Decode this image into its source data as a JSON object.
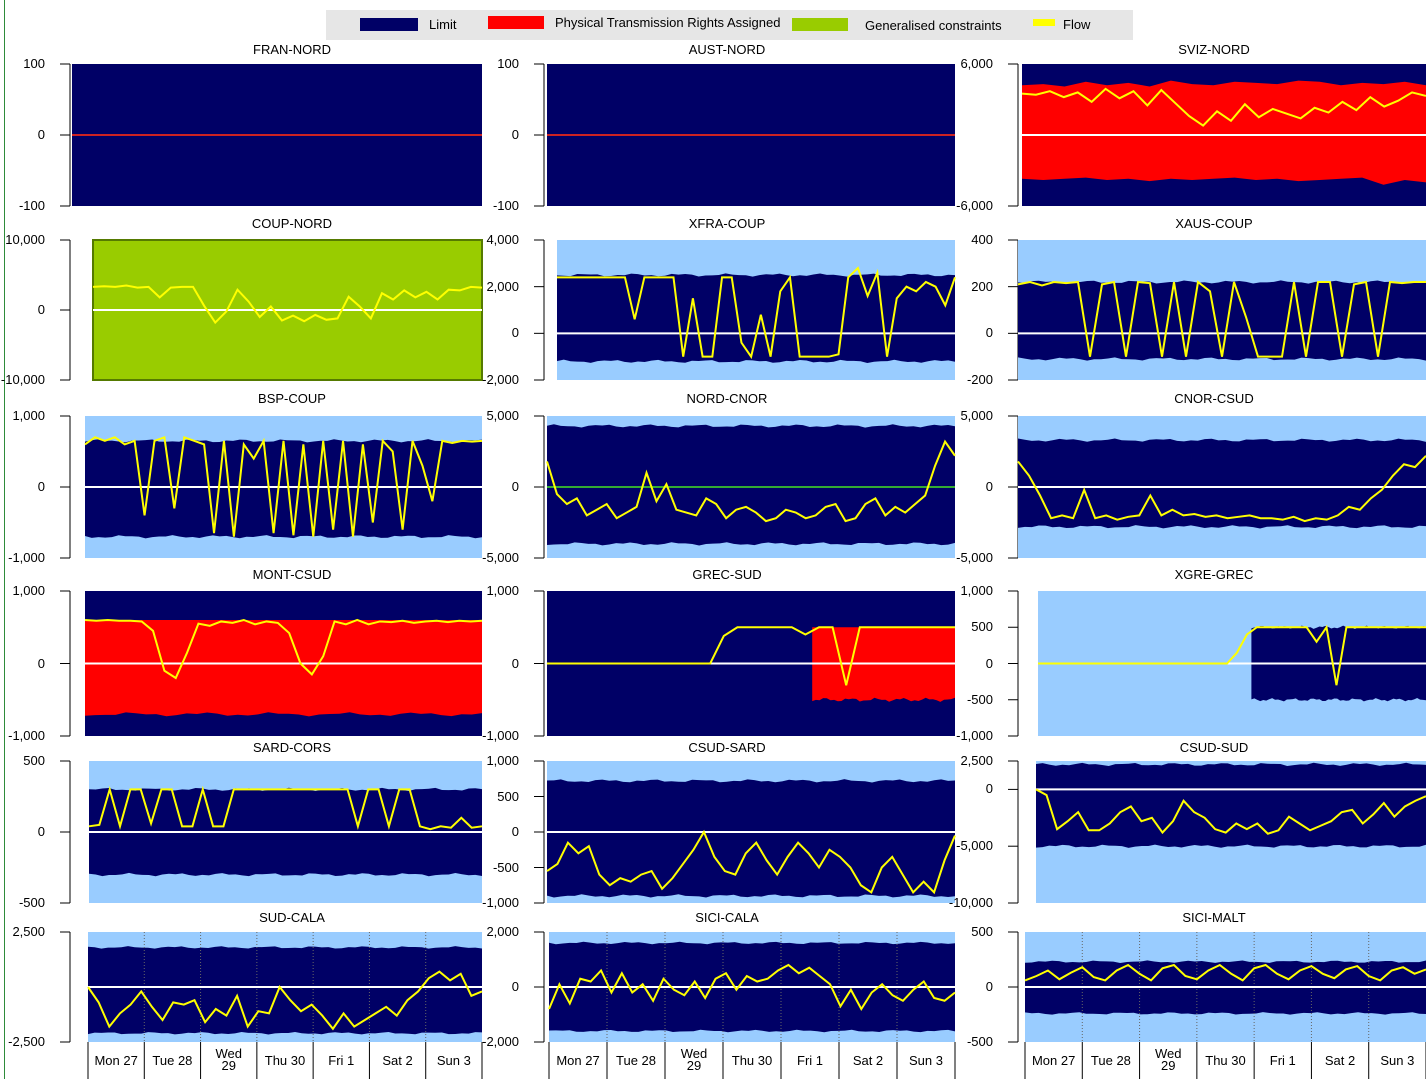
{
  "colors": {
    "limit": "#000066",
    "ptr": "#ff0000",
    "generalised": "#99cc00",
    "flow": "#ffff00",
    "outer": "#99ccff",
    "zero_line": "#ffffff"
  },
  "legend": [
    {
      "label": "Limit",
      "color": "#000066"
    },
    {
      "label": "Physical Transmission Rights Assigned",
      "color": "#ff0000"
    },
    {
      "label": "Generalised constraints",
      "color": "#99cc00"
    },
    {
      "label": "Flow",
      "color": "#ffff00"
    }
  ],
  "x_categories": [
    "Mon 27",
    "Tue 28",
    "Wed 29",
    "Thu 30",
    "Fri 1",
    "Sat 2",
    "Sun 3"
  ],
  "x_labels_display": [
    [
      "Mon 27"
    ],
    [
      "Tue 28"
    ],
    [
      "Wed",
      "29"
    ],
    [
      "Thu 30"
    ],
    [
      "Fri 1"
    ],
    [
      "Sat 2"
    ],
    [
      "Sun 3"
    ]
  ],
  "chart_data": [
    {
      "type": "area",
      "title": "FRAN-NORD",
      "yticks": [
        "100",
        "0",
        "-100"
      ],
      "ylim": [
        -100,
        100
      ],
      "fill": "limit",
      "limit": [
        [
          -100,
          100
        ]
      ],
      "ptr": null,
      "flow": [
        0,
        0
      ],
      "flow_color": "#cc2222"
    },
    {
      "type": "area",
      "title": "AUST-NORD",
      "yticks": [
        "100",
        "0",
        "-100"
      ],
      "ylim": [
        -100,
        100
      ],
      "fill": "limit",
      "limit": [
        [
          -100,
          100
        ]
      ],
      "ptr": null,
      "flow": [
        0,
        0
      ],
      "flow_color": "#cc2222"
    },
    {
      "type": "area",
      "title": "SVIZ-NORD",
      "yticks": [
        "6,000",
        "-6,000"
      ],
      "ylim": [
        -6000,
        6000
      ],
      "fill": "limit",
      "ptr_hi": [
        4200,
        4300,
        4100,
        4500,
        4200,
        4400,
        4100,
        4600,
        4300,
        4200,
        4500,
        4400,
        4300,
        4600,
        4500,
        4200,
        4400,
        4300,
        4500,
        4200
      ],
      "ptr_lo": [
        -3700,
        -3800,
        -3700,
        -3600,
        -3800,
        -3700,
        -3900,
        -3700,
        -3800,
        -3700,
        -3600,
        -3800,
        -3700,
        -3900,
        -3800,
        -3700,
        -3600,
        -4200,
        -3800,
        -4000
      ],
      "flow": [
        3500,
        3400,
        3700,
        3200,
        3600,
        2800,
        3900,
        3100,
        3700,
        2500,
        3800,
        2700,
        1600,
        800,
        2000,
        1200,
        2600,
        1500,
        2200,
        1800,
        1400,
        2300,
        1900,
        2800,
        2100,
        3200,
        2400,
        2900,
        3600,
        3300
      ]
    },
    {
      "type": "area",
      "title": "COUP-NORD",
      "yticks": [
        "10,000",
        "0",
        "-10,000"
      ],
      "ylim": [
        -10000,
        10000
      ],
      "fill": "generalised",
      "flow": [
        3300,
        3400,
        3300,
        3500,
        3200,
        3300,
        1800,
        3200,
        3300,
        3300,
        600,
        -1800,
        -200,
        2900,
        1200,
        -1000,
        500,
        -1500,
        -800,
        -1600,
        -700,
        -1400,
        -1200,
        1900,
        500,
        -1200,
        2400,
        1500,
        2800,
        1800,
        2600,
        1500,
        2900,
        2800,
        3300,
        3200
      ]
    },
    {
      "type": "area",
      "title": "XFRA-COUP",
      "yticks": [
        "4,000",
        "2,000",
        "0",
        "-2,000"
      ],
      "ylim": [
        -2000,
        4000
      ],
      "fill": "limit",
      "limit_hi": 2500,
      "limit_lo": -1200,
      "flow": [
        2400,
        2400,
        2400,
        2400,
        2400,
        2400,
        2400,
        2400,
        600,
        2400,
        2400,
        2400,
        2400,
        -1000,
        1500,
        -1000,
        -1000,
        2400,
        2400,
        -400,
        -1000,
        800,
        -1000,
        1800,
        2400,
        -1000,
        -1000,
        -1000,
        -1000,
        -900,
        2400,
        2800,
        1600,
        2600,
        -1000,
        1500,
        2000,
        1800,
        2200,
        2000,
        1200,
        2400
      ]
    },
    {
      "type": "area",
      "title": "XAUS-COUP",
      "yticks": [
        "400",
        "200",
        "0",
        "-200"
      ],
      "ylim": [
        -200,
        400
      ],
      "fill": "limit",
      "limit_hi": 220,
      "limit_lo": -110,
      "flow": [
        210,
        220,
        205,
        220,
        215,
        220,
        -100,
        210,
        220,
        -100,
        220,
        215,
        -100,
        220,
        -100,
        220,
        180,
        -100,
        220,
        70,
        -100,
        -100,
        -100,
        220,
        -100,
        220,
        220,
        -100,
        210,
        220,
        -100,
        220,
        215,
        220,
        220
      ]
    },
    {
      "type": "area",
      "title": "BSP-COUP",
      "yticks": [
        "1,000",
        "0",
        "-1,000"
      ],
      "ylim": [
        -1000,
        1000
      ],
      "fill": "limit",
      "limit_hi": 650,
      "limit_lo": -700,
      "flow": [
        600,
        700,
        650,
        700,
        600,
        650,
        -400,
        650,
        700,
        -300,
        700,
        650,
        600,
        -650,
        650,
        -700,
        600,
        400,
        650,
        -650,
        650,
        -680,
        600,
        -700,
        650,
        -600,
        650,
        -700,
        600,
        -500,
        650,
        500,
        -600,
        650,
        300,
        -200,
        650,
        620,
        650,
        640,
        650
      ]
    },
    {
      "type": "area",
      "title": "NORD-CNOR",
      "yticks": [
        "5,000",
        "0",
        "-5,000"
      ],
      "ylim": [
        -5000,
        5000
      ],
      "fill": "limit",
      "limit_hi": 4300,
      "limit_lo": -4000,
      "flow": [
        1800,
        -500,
        -1200,
        -800,
        -2000,
        -1600,
        -1200,
        -2200,
        -1800,
        -1400,
        1000,
        -1000,
        200,
        -1600,
        -1800,
        -2000,
        -800,
        -1200,
        -2200,
        -1600,
        -1400,
        -1800,
        -2400,
        -2200,
        -1600,
        -1800,
        -2200,
        -2000,
        -1400,
        -1200,
        -2400,
        -2200,
        -1200,
        -800,
        -2000,
        -1400,
        -1800,
        -1200,
        -600,
        1500,
        3200,
        2200
      ]
    },
    {
      "type": "area",
      "title": "CNOR-CSUD",
      "yticks": [
        "5,000",
        "0",
        "-5,000"
      ],
      "ylim": [
        -5000,
        5000
      ],
      "fill": "limit",
      "limit_hi": 3300,
      "limit_lo": -2800,
      "flow": [
        1800,
        800,
        -600,
        -2200,
        -2000,
        -2200,
        -200,
        -2200,
        -2000,
        -2300,
        -2100,
        -2000,
        -600,
        -2000,
        -1600,
        -2000,
        -1900,
        -2100,
        -2000,
        -2200,
        -2100,
        -2000,
        -2200,
        -2200,
        -2300,
        -2100,
        -2400,
        -2200,
        -2300,
        -2000,
        -1400,
        -1600,
        -800,
        -200,
        800,
        1600,
        1400,
        2200
      ]
    },
    {
      "type": "area",
      "title": "MONT-CSUD",
      "yticks": [
        "1,000",
        "0",
        "-1,000"
      ],
      "ylim": [
        -1000,
        1000
      ],
      "fill": "ptr",
      "limit_hi": 600,
      "limit_lo": -780,
      "ptr_hi": 600,
      "ptr_lo": -700,
      "flow": [
        600,
        590,
        600,
        590,
        590,
        580,
        450,
        -100,
        -200,
        150,
        550,
        520,
        580,
        560,
        600,
        540,
        580,
        560,
        420,
        0,
        -150,
        100,
        580,
        540,
        600,
        540,
        580,
        570,
        590,
        560,
        580,
        590,
        570,
        590,
        580,
        590
      ]
    },
    {
      "type": "area",
      "title": "GREC-SUD",
      "yticks": [
        "1,000",
        "0",
        "-1,000"
      ],
      "ylim": [
        -1000,
        1000
      ],
      "fill": "limit",
      "ptr_start": 0.65,
      "ptr_hi": 500,
      "ptr_lo": -500,
      "flow": [
        0,
        0,
        0,
        0,
        0,
        0,
        0,
        0,
        0,
        0,
        0,
        0,
        0,
        380,
        500,
        500,
        500,
        500,
        500,
        400,
        500,
        500,
        -300,
        500,
        500,
        500,
        500,
        500,
        500,
        500,
        500
      ]
    },
    {
      "type": "area",
      "title": "XGRE-GREC",
      "yticks": [
        "1,000",
        "500",
        "0",
        "-500",
        "-1,000"
      ],
      "ylim": [
        -1000,
        1000
      ],
      "fill": "outer",
      "limit_start": 0.55,
      "limit_hi": 500,
      "limit_lo": -500,
      "flow": [
        0,
        0,
        0,
        0,
        0,
        0,
        0,
        0,
        0,
        0,
        0,
        0,
        0,
        0,
        0,
        0,
        0,
        0,
        0,
        0,
        150,
        400,
        500,
        500,
        500,
        500,
        500,
        500,
        300,
        500,
        -300,
        500,
        500,
        500,
        500,
        500,
        500,
        500,
        500,
        500
      ]
    },
    {
      "type": "area",
      "title": "SARD-CORS",
      "yticks": [
        "500",
        "0",
        "-500"
      ],
      "ylim": [
        -500,
        500
      ],
      "fill": "limit",
      "limit_hi": 300,
      "limit_lo": -300,
      "flow": [
        40,
        50,
        300,
        40,
        300,
        300,
        60,
        300,
        300,
        40,
        40,
        300,
        40,
        40,
        300,
        300,
        300,
        300,
        300,
        300,
        300,
        300,
        300,
        300,
        300,
        300,
        40,
        300,
        300,
        40,
        300,
        300,
        40,
        20,
        40,
        30,
        100,
        30,
        40
      ]
    },
    {
      "type": "area",
      "title": "CSUD-SARD",
      "yticks": [
        "1,000",
        "500",
        "0",
        "-500",
        "-1,000"
      ],
      "ylim": [
        -1000,
        1000
      ],
      "fill": "limit",
      "limit_hi": 720,
      "limit_lo": -900,
      "flow": [
        -550,
        -450,
        -150,
        -300,
        -200,
        -600,
        -750,
        -650,
        -700,
        -600,
        -550,
        -800,
        -650,
        -450,
        -250,
        0,
        -350,
        -550,
        -600,
        -300,
        -150,
        -400,
        -600,
        -350,
        -150,
        -300,
        -500,
        -250,
        -350,
        -500,
        -750,
        -850,
        -500,
        -350,
        -600,
        -850,
        -700,
        -850,
        -400,
        -50
      ]
    },
    {
      "type": "area",
      "title": "CSUD-SUD",
      "yticks": [
        "2,500",
        "0",
        "-5,000",
        "-10,000"
      ],
      "ylim": [
        -10000,
        2500
      ],
      "fill": "limit",
      "limit_hi": 2200,
      "limit_lo": -5000,
      "flow": [
        0,
        -500,
        -3500,
        -2800,
        -2000,
        -3600,
        -3600,
        -3000,
        -2000,
        -1500,
        -2800,
        -2500,
        -3800,
        -2800,
        -1000,
        -2000,
        -2500,
        -3500,
        -3800,
        -3000,
        -3500,
        -3000,
        -3900,
        -3600,
        -2400,
        -3000,
        -3600,
        -3200,
        -2800,
        -2000,
        -1800,
        -3000,
        -2200,
        -1200,
        -2400,
        -1500,
        -1000,
        -600
      ]
    },
    {
      "type": "area",
      "title": "SUD-CALA",
      "yticks": [
        "2,500",
        "-2,500"
      ],
      "ylim": [
        -2500,
        2500
      ],
      "fill": "limit",
      "limit_hi": 1800,
      "limit_lo": -2100,
      "flow": [
        0,
        -700,
        -1800,
        -1200,
        -800,
        -200,
        -900,
        -1500,
        -700,
        -800,
        -600,
        -1600,
        -1000,
        -1300,
        -400,
        -1800,
        -1100,
        -1200,
        0,
        -600,
        -1100,
        -800,
        -1300,
        -1900,
        -1200,
        -1800,
        -1500,
        -1200,
        -900,
        -1300,
        -600,
        -200,
        400,
        700,
        300,
        600,
        -400,
        -200
      ]
    },
    {
      "type": "area",
      "title": "SICI-CALA",
      "yticks": [
        "2,000",
        "0",
        "-2,000"
      ],
      "ylim": [
        -2000,
        2000
      ],
      "fill": "limit",
      "limit_hi": 1600,
      "limit_lo": -1600,
      "flow": [
        -800,
        100,
        -600,
        300,
        200,
        600,
        -200,
        500,
        -200,
        100,
        -500,
        300,
        -100,
        -300,
        200,
        -400,
        300,
        500,
        -100,
        400,
        200,
        300,
        600,
        800,
        500,
        700,
        400,
        100,
        -700,
        -100,
        -800,
        -200,
        100,
        -300,
        -500,
        -100,
        200,
        -400,
        -500,
        -200
      ]
    },
    {
      "type": "area",
      "title": "SICI-MALT",
      "yticks": [
        "500",
        "0",
        "-500"
      ],
      "ylim": [
        -500,
        500
      ],
      "fill": "limit",
      "limit_hi": 230,
      "limit_lo": -240,
      "flow": [
        60,
        100,
        150,
        70,
        130,
        180,
        90,
        60,
        150,
        200,
        120,
        60,
        170,
        200,
        100,
        70,
        150,
        200,
        120,
        60,
        170,
        200,
        120,
        70,
        150,
        190,
        120,
        80,
        160,
        190,
        100,
        60,
        150,
        180,
        120,
        160
      ]
    }
  ]
}
